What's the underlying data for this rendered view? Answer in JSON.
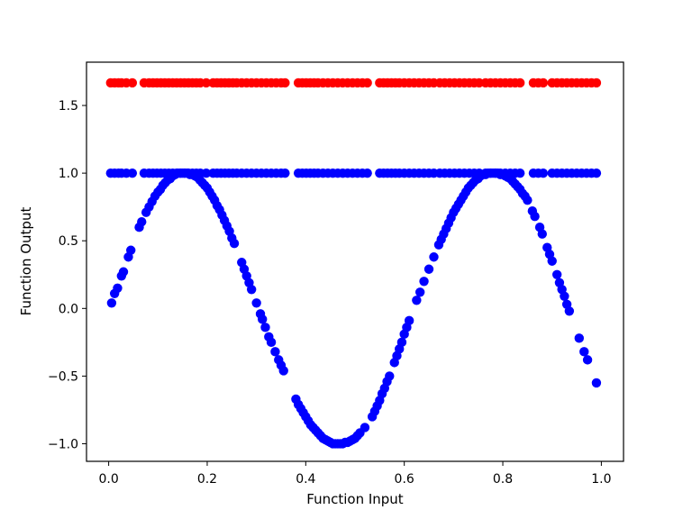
{
  "chart_data": {
    "type": "scatter",
    "title": "",
    "xlabel": "Function Input",
    "ylabel": "Function Output",
    "xlim": [
      -0.045,
      1.045
    ],
    "ylim": [
      -1.13,
      1.82
    ],
    "x_ticks": [
      0.0,
      0.2,
      0.4,
      0.6,
      0.8,
      1.0
    ],
    "x_tick_labels": [
      "0.0",
      "0.2",
      "0.4",
      "0.6",
      "0.8",
      "1.0"
    ],
    "y_ticks": [
      -1.0,
      -0.5,
      0.0,
      0.5,
      1.0,
      1.5
    ],
    "y_tick_labels": [
      "−1.0",
      "−0.5",
      "0.0",
      "0.5",
      "1.0",
      "1.5"
    ],
    "grid": false,
    "legend": "none",
    "series": [
      {
        "color": "#ff0000",
        "marker": "circle",
        "x": [
          0.004,
          0.012,
          0.02,
          0.026,
          0.036,
          0.048,
          0.072,
          0.082,
          0.09,
          0.098,
          0.106,
          0.114,
          0.122,
          0.13,
          0.138,
          0.146,
          0.154,
          0.162,
          0.17,
          0.178,
          0.186,
          0.198,
          0.212,
          0.22,
          0.228,
          0.236,
          0.244,
          0.252,
          0.26,
          0.27,
          0.28,
          0.29,
          0.3,
          0.31,
          0.32,
          0.33,
          0.34,
          0.35,
          0.358,
          0.385,
          0.393,
          0.401,
          0.409,
          0.417,
          0.425,
          0.435,
          0.445,
          0.455,
          0.465,
          0.475,
          0.485,
          0.495,
          0.505,
          0.515,
          0.525,
          0.55,
          0.558,
          0.566,
          0.574,
          0.582,
          0.59,
          0.6,
          0.61,
          0.62,
          0.63,
          0.64,
          0.65,
          0.66,
          0.672,
          0.682,
          0.692,
          0.702,
          0.712,
          0.722,
          0.732,
          0.742,
          0.752,
          0.765,
          0.775,
          0.785,
          0.795,
          0.805,
          0.815,
          0.825,
          0.835,
          0.862,
          0.872,
          0.882,
          0.9,
          0.91,
          0.92,
          0.93,
          0.94,
          0.95,
          0.96,
          0.97,
          0.98,
          0.99
        ],
        "y": [
          1.667,
          1.667,
          1.667,
          1.667,
          1.667,
          1.667,
          1.667,
          1.667,
          1.667,
          1.667,
          1.667,
          1.667,
          1.667,
          1.667,
          1.667,
          1.667,
          1.667,
          1.667,
          1.667,
          1.667,
          1.667,
          1.667,
          1.667,
          1.667,
          1.667,
          1.667,
          1.667,
          1.667,
          1.667,
          1.667,
          1.667,
          1.667,
          1.667,
          1.667,
          1.667,
          1.667,
          1.667,
          1.667,
          1.667,
          1.667,
          1.667,
          1.667,
          1.667,
          1.667,
          1.667,
          1.667,
          1.667,
          1.667,
          1.667,
          1.667,
          1.667,
          1.667,
          1.667,
          1.667,
          1.667,
          1.667,
          1.667,
          1.667,
          1.667,
          1.667,
          1.667,
          1.667,
          1.667,
          1.667,
          1.667,
          1.667,
          1.667,
          1.667,
          1.667,
          1.667,
          1.667,
          1.667,
          1.667,
          1.667,
          1.667,
          1.667,
          1.667,
          1.667,
          1.667,
          1.667,
          1.667,
          1.667,
          1.667,
          1.667,
          1.667,
          1.667,
          1.667,
          1.667,
          1.667,
          1.667,
          1.667,
          1.667,
          1.667,
          1.667,
          1.667,
          1.667,
          1.667,
          1.667
        ]
      },
      {
        "color": "#0000ff",
        "marker": "circle",
        "x": [
          0.004,
          0.012,
          0.02,
          0.026,
          0.036,
          0.048,
          0.072,
          0.082,
          0.09,
          0.098,
          0.106,
          0.114,
          0.122,
          0.13,
          0.138,
          0.146,
          0.154,
          0.162,
          0.17,
          0.178,
          0.186,
          0.198,
          0.212,
          0.22,
          0.228,
          0.236,
          0.244,
          0.252,
          0.26,
          0.27,
          0.28,
          0.29,
          0.3,
          0.31,
          0.32,
          0.33,
          0.34,
          0.35,
          0.358,
          0.385,
          0.393,
          0.401,
          0.409,
          0.417,
          0.425,
          0.435,
          0.445,
          0.455,
          0.465,
          0.475,
          0.485,
          0.495,
          0.505,
          0.515,
          0.525,
          0.55,
          0.558,
          0.566,
          0.574,
          0.582,
          0.59,
          0.6,
          0.61,
          0.62,
          0.63,
          0.64,
          0.65,
          0.66,
          0.672,
          0.682,
          0.692,
          0.702,
          0.712,
          0.722,
          0.732,
          0.742,
          0.752,
          0.765,
          0.775,
          0.785,
          0.795,
          0.805,
          0.815,
          0.825,
          0.835,
          0.862,
          0.872,
          0.882,
          0.9,
          0.91,
          0.92,
          0.93,
          0.94,
          0.95,
          0.96,
          0.97,
          0.98,
          0.99
        ],
        "y": [
          1.0,
          1.0,
          1.0,
          1.0,
          1.0,
          1.0,
          1.0,
          1.0,
          1.0,
          1.0,
          1.0,
          1.0,
          1.0,
          1.0,
          1.0,
          1.0,
          1.0,
          1.0,
          1.0,
          1.0,
          1.0,
          1.0,
          1.0,
          1.0,
          1.0,
          1.0,
          1.0,
          1.0,
          1.0,
          1.0,
          1.0,
          1.0,
          1.0,
          1.0,
          1.0,
          1.0,
          1.0,
          1.0,
          1.0,
          1.0,
          1.0,
          1.0,
          1.0,
          1.0,
          1.0,
          1.0,
          1.0,
          1.0,
          1.0,
          1.0,
          1.0,
          1.0,
          1.0,
          1.0,
          1.0,
          1.0,
          1.0,
          1.0,
          1.0,
          1.0,
          1.0,
          1.0,
          1.0,
          1.0,
          1.0,
          1.0,
          1.0,
          1.0,
          1.0,
          1.0,
          1.0,
          1.0,
          1.0,
          1.0,
          1.0,
          1.0,
          1.0,
          1.0,
          1.0,
          1.0,
          1.0,
          1.0,
          1.0,
          1.0,
          1.0,
          1.0,
          1.0,
          1.0,
          1.0,
          1.0,
          1.0,
          1.0,
          1.0,
          1.0,
          1.0,
          1.0,
          1.0,
          1.0
        ]
      },
      {
        "color": "#0000ff",
        "marker": "circle",
        "x": [
          0.006,
          0.012,
          0.018,
          0.026,
          0.03,
          0.04,
          0.045,
          0.062,
          0.067,
          0.076,
          0.082,
          0.088,
          0.094,
          0.1,
          0.105,
          0.11,
          0.115,
          0.12,
          0.125,
          0.13,
          0.135,
          0.14,
          0.145,
          0.15,
          0.155,
          0.16,
          0.165,
          0.17,
          0.175,
          0.18,
          0.185,
          0.19,
          0.195,
          0.2,
          0.205,
          0.21,
          0.215,
          0.22,
          0.225,
          0.23,
          0.235,
          0.24,
          0.245,
          0.25,
          0.255,
          0.27,
          0.275,
          0.28,
          0.285,
          0.29,
          0.3,
          0.308,
          0.312,
          0.318,
          0.325,
          0.33,
          0.338,
          0.345,
          0.35,
          0.355,
          0.38,
          0.385,
          0.39,
          0.395,
          0.4,
          0.405,
          0.41,
          0.415,
          0.42,
          0.425,
          0.43,
          0.435,
          0.44,
          0.445,
          0.45,
          0.455,
          0.46,
          0.465,
          0.47,
          0.475,
          0.48,
          0.485,
          0.49,
          0.495,
          0.5,
          0.505,
          0.51,
          0.52,
          0.535,
          0.54,
          0.545,
          0.55,
          0.555,
          0.56,
          0.565,
          0.57,
          0.58,
          0.585,
          0.59,
          0.595,
          0.6,
          0.605,
          0.61,
          0.625,
          0.632,
          0.64,
          0.65,
          0.66,
          0.67,
          0.675,
          0.68,
          0.685,
          0.69,
          0.695,
          0.7,
          0.705,
          0.71,
          0.715,
          0.72,
          0.725,
          0.73,
          0.735,
          0.74,
          0.745,
          0.75,
          0.755,
          0.76,
          0.765,
          0.77,
          0.775,
          0.78,
          0.785,
          0.79,
          0.795,
          0.8,
          0.805,
          0.81,
          0.815,
          0.82,
          0.825,
          0.83,
          0.835,
          0.84,
          0.845,
          0.85,
          0.86,
          0.865,
          0.875,
          0.88,
          0.89,
          0.895,
          0.9,
          0.91,
          0.915,
          0.92,
          0.925,
          0.93,
          0.935,
          0.955,
          0.965,
          0.972,
          0.99
        ],
        "y": [
          0.04,
          0.11,
          0.15,
          0.24,
          0.27,
          0.38,
          0.43,
          0.6,
          0.64,
          0.71,
          0.75,
          0.79,
          0.83,
          0.86,
          0.88,
          0.91,
          0.93,
          0.95,
          0.96,
          0.98,
          0.99,
          1.0,
          1.0,
          1.0,
          1.0,
          1.0,
          0.99,
          0.99,
          0.98,
          0.97,
          0.95,
          0.93,
          0.91,
          0.89,
          0.86,
          0.83,
          0.8,
          0.76,
          0.73,
          0.69,
          0.65,
          0.61,
          0.57,
          0.52,
          0.48,
          0.34,
          0.29,
          0.24,
          0.19,
          0.14,
          0.04,
          -0.04,
          -0.08,
          -0.14,
          -0.21,
          -0.25,
          -0.32,
          -0.38,
          -0.42,
          -0.46,
          -0.67,
          -0.71,
          -0.74,
          -0.77,
          -0.8,
          -0.83,
          -0.86,
          -0.88,
          -0.9,
          -0.92,
          -0.94,
          -0.96,
          -0.97,
          -0.98,
          -0.99,
          -1.0,
          -1.0,
          -1.0,
          -1.0,
          -1.0,
          -0.99,
          -0.99,
          -0.98,
          -0.97,
          -0.96,
          -0.94,
          -0.92,
          -0.88,
          -0.8,
          -0.76,
          -0.72,
          -0.68,
          -0.63,
          -0.59,
          -0.54,
          -0.5,
          -0.4,
          -0.35,
          -0.3,
          -0.25,
          -0.19,
          -0.14,
          -0.09,
          0.06,
          0.12,
          0.2,
          0.29,
          0.38,
          0.47,
          0.51,
          0.55,
          0.59,
          0.63,
          0.67,
          0.71,
          0.74,
          0.77,
          0.8,
          0.83,
          0.86,
          0.89,
          0.91,
          0.93,
          0.95,
          0.96,
          0.98,
          0.99,
          0.99,
          1.0,
          1.0,
          1.0,
          1.0,
          1.0,
          0.99,
          0.99,
          0.98,
          0.97,
          0.96,
          0.94,
          0.92,
          0.9,
          0.88,
          0.85,
          0.83,
          0.8,
          0.72,
          0.68,
          0.6,
          0.55,
          0.45,
          0.4,
          0.35,
          0.25,
          0.19,
          0.14,
          0.09,
          0.03,
          -0.02,
          -0.22,
          -0.32,
          -0.38,
          -0.55
        ]
      }
    ]
  }
}
